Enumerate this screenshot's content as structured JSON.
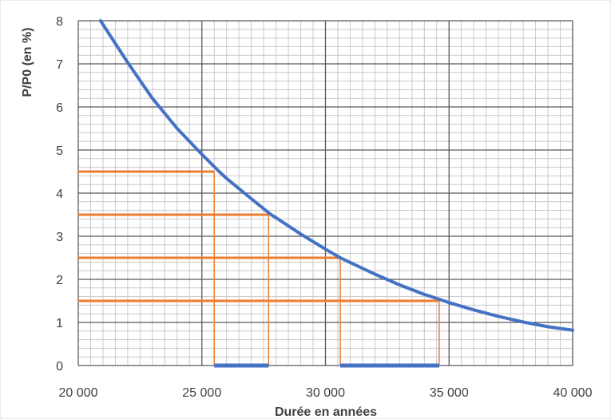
{
  "chart_data": {
    "type": "line",
    "title": "",
    "xlabel": "Durée en années",
    "ylabel": "P/P0 (en %)",
    "xlim": [
      20000,
      40000
    ],
    "ylim": [
      0,
      8
    ],
    "grid": true,
    "legend": "none",
    "x_ticks": [
      {
        "value": 20000,
        "label": "20 000"
      },
      {
        "value": 25000,
        "label": "25 000"
      },
      {
        "value": 30000,
        "label": "30 000"
      },
      {
        "value": 35000,
        "label": "35 000"
      },
      {
        "value": 40000,
        "label": "40 000"
      }
    ],
    "y_ticks": [
      {
        "value": 0,
        "label": "0"
      },
      {
        "value": 1,
        "label": "1"
      },
      {
        "value": 2,
        "label": "2"
      },
      {
        "value": 3,
        "label": "3"
      },
      {
        "value": 4,
        "label": "4"
      },
      {
        "value": 5,
        "label": "5"
      },
      {
        "value": 6,
        "label": "6"
      },
      {
        "value": 7,
        "label": "7"
      },
      {
        "value": 8,
        "label": "8"
      }
    ],
    "series": [
      {
        "color": "#4472C4",
        "points": [
          [
            20900,
            8.0
          ],
          [
            22000,
            7.03
          ],
          [
            23000,
            6.2
          ],
          [
            24000,
            5.5
          ],
          [
            25000,
            4.9
          ],
          [
            25700,
            4.5
          ],
          [
            26000,
            4.34
          ],
          [
            27000,
            3.87
          ],
          [
            27800,
            3.5
          ],
          [
            28000,
            3.43
          ],
          [
            29000,
            3.05
          ],
          [
            30000,
            2.7
          ],
          [
            30600,
            2.5
          ],
          [
            31000,
            2.39
          ],
          [
            32000,
            2.12
          ],
          [
            33000,
            1.87
          ],
          [
            34000,
            1.65
          ],
          [
            34800,
            1.5
          ],
          [
            35000,
            1.46
          ],
          [
            36000,
            1.29
          ],
          [
            37000,
            1.14
          ],
          [
            38000,
            1.01
          ],
          [
            39000,
            0.9
          ],
          [
            40000,
            0.82
          ]
        ]
      }
    ],
    "annotations": [
      {
        "type": "hline",
        "y": 4.5,
        "x_from": 20000,
        "x_to": 25500,
        "color": "#ED7D31"
      },
      {
        "type": "hline",
        "y": 3.5,
        "x_from": 20000,
        "x_to": 27700,
        "color": "#ED7D31"
      },
      {
        "type": "hline",
        "y": 2.5,
        "x_from": 20000,
        "x_to": 30600,
        "color": "#ED7D31"
      },
      {
        "type": "hline",
        "y": 1.5,
        "x_from": 20000,
        "x_to": 34600,
        "color": "#ED7D31"
      },
      {
        "type": "vline",
        "x": 25500,
        "y_from": 0,
        "y_to": 4.5,
        "color": "#ED7D31"
      },
      {
        "type": "vline",
        "x": 27700,
        "y_from": 0,
        "y_to": 3.5,
        "color": "#ED7D31"
      },
      {
        "type": "vline",
        "x": 30600,
        "y_from": 0,
        "y_to": 2.5,
        "color": "#ED7D31"
      },
      {
        "type": "vline",
        "x": 34600,
        "y_from": 0,
        "y_to": 1.5,
        "color": "#ED7D31"
      },
      {
        "type": "interval",
        "x_from": 25500,
        "x_to": 27700,
        "y": 0,
        "color": "#4472C4"
      },
      {
        "type": "interval",
        "x_from": 30600,
        "x_to": 34600,
        "y": 0,
        "color": "#4472C4"
      }
    ]
  }
}
